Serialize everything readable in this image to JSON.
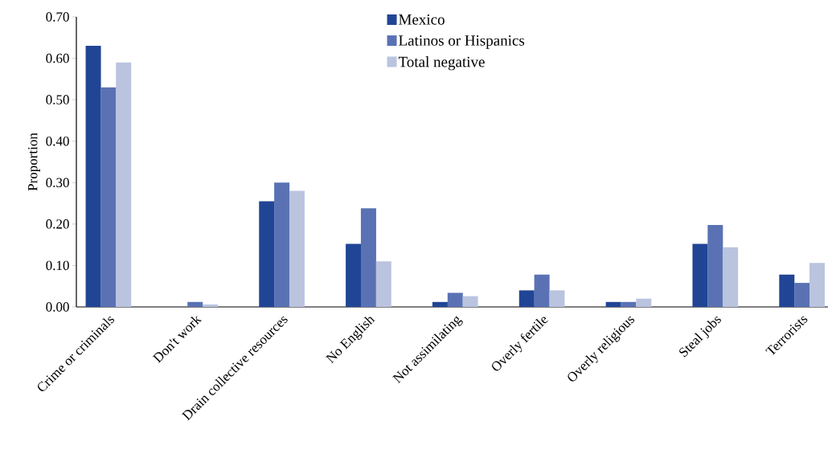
{
  "chart_data": {
    "type": "bar",
    "ylabel": "Proportion",
    "categories": [
      "Crime or criminals",
      "Don't work",
      "Drain collective resources",
      "No English",
      "Not assimilating",
      "Overly fertile",
      "Overly religious",
      "Steal jobs",
      "Terrorists"
    ],
    "series": [
      {
        "name": "Mexico",
        "color": "#214595",
        "values": [
          0.63,
          0,
          0.255,
          0.152,
          0.012,
          0.04,
          0.012,
          0.152,
          0.078
        ]
      },
      {
        "name": "Latinos or Hispanics",
        "color": "#5a72b4",
        "values": [
          0.53,
          0.012,
          0.3,
          0.238,
          0.034,
          0.078,
          0.012,
          0.198,
          0.058
        ]
      },
      {
        "name": "Total negative",
        "color": "#bac4df",
        "values": [
          0.59,
          0.006,
          0.28,
          0.11,
          0.026,
          0.04,
          0.02,
          0.144,
          0.106
        ]
      }
    ],
    "ylim": [
      0,
      0.7
    ],
    "yticks": [
      {
        "value": 0,
        "label": "0.00"
      },
      {
        "value": 0.1,
        "label": "0.10"
      },
      {
        "value": 0.2,
        "label": "0.20"
      },
      {
        "value": 0.3,
        "label": "0.30"
      },
      {
        "value": 0.4,
        "label": "0.40"
      },
      {
        "value": 0.5,
        "label": "0.50"
      },
      {
        "value": 0.6,
        "label": "0.60"
      },
      {
        "value": 0.7,
        "label": "0.70"
      }
    ],
    "legend": "top",
    "grid": false
  }
}
